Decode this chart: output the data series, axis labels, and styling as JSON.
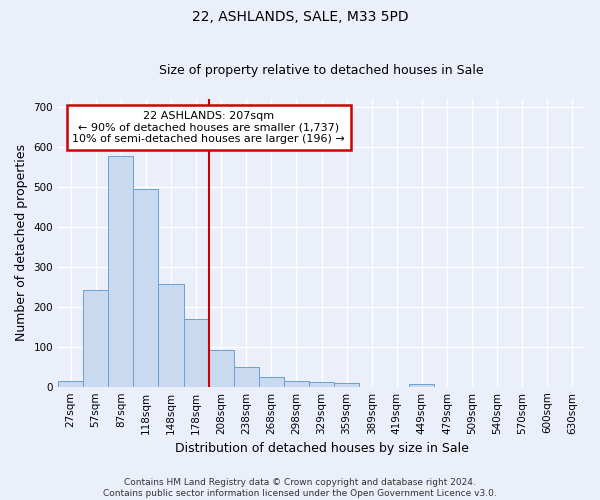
{
  "title": "22, ASHLANDS, SALE, M33 5PD",
  "subtitle": "Size of property relative to detached houses in Sale",
  "xlabel": "Distribution of detached houses by size in Sale",
  "ylabel": "Number of detached properties",
  "bin_labels": [
    "27sqm",
    "57sqm",
    "87sqm",
    "118sqm",
    "148sqm",
    "178sqm",
    "208sqm",
    "238sqm",
    "268sqm",
    "298sqm",
    "329sqm",
    "359sqm",
    "389sqm",
    "419sqm",
    "449sqm",
    "479sqm",
    "509sqm",
    "540sqm",
    "570sqm",
    "600sqm",
    "630sqm"
  ],
  "bar_heights": [
    13,
    243,
    578,
    495,
    258,
    170,
    92,
    49,
    24,
    13,
    11,
    8,
    0,
    0,
    6,
    0,
    0,
    0,
    0,
    0,
    0
  ],
  "bar_color": "#c9d9f0",
  "bar_edge_color": "#6b9fd4",
  "ylim": [
    0,
    720
  ],
  "yticks": [
    0,
    100,
    200,
    300,
    400,
    500,
    600,
    700
  ],
  "vline_bar_index": 6,
  "vline_color": "#cc0000",
  "annotation_line1": "22 ASHLANDS: 207sqm",
  "annotation_line2": "← 90% of detached houses are smaller (1,737)",
  "annotation_line3": "10% of semi-detached houses are larger (196) →",
  "annotation_box_color": "#cc0000",
  "footer_text": "Contains HM Land Registry data © Crown copyright and database right 2024.\nContains public sector information licensed under the Open Government Licence v3.0.",
  "bg_color": "#eaeff9",
  "plot_bg_color": "#eaeff9",
  "grid_color": "#ffffff",
  "title_fontsize": 10,
  "subtitle_fontsize": 9,
  "axis_label_fontsize": 9,
  "tick_fontsize": 7.5,
  "annotation_fontsize": 8,
  "footer_fontsize": 6.5
}
